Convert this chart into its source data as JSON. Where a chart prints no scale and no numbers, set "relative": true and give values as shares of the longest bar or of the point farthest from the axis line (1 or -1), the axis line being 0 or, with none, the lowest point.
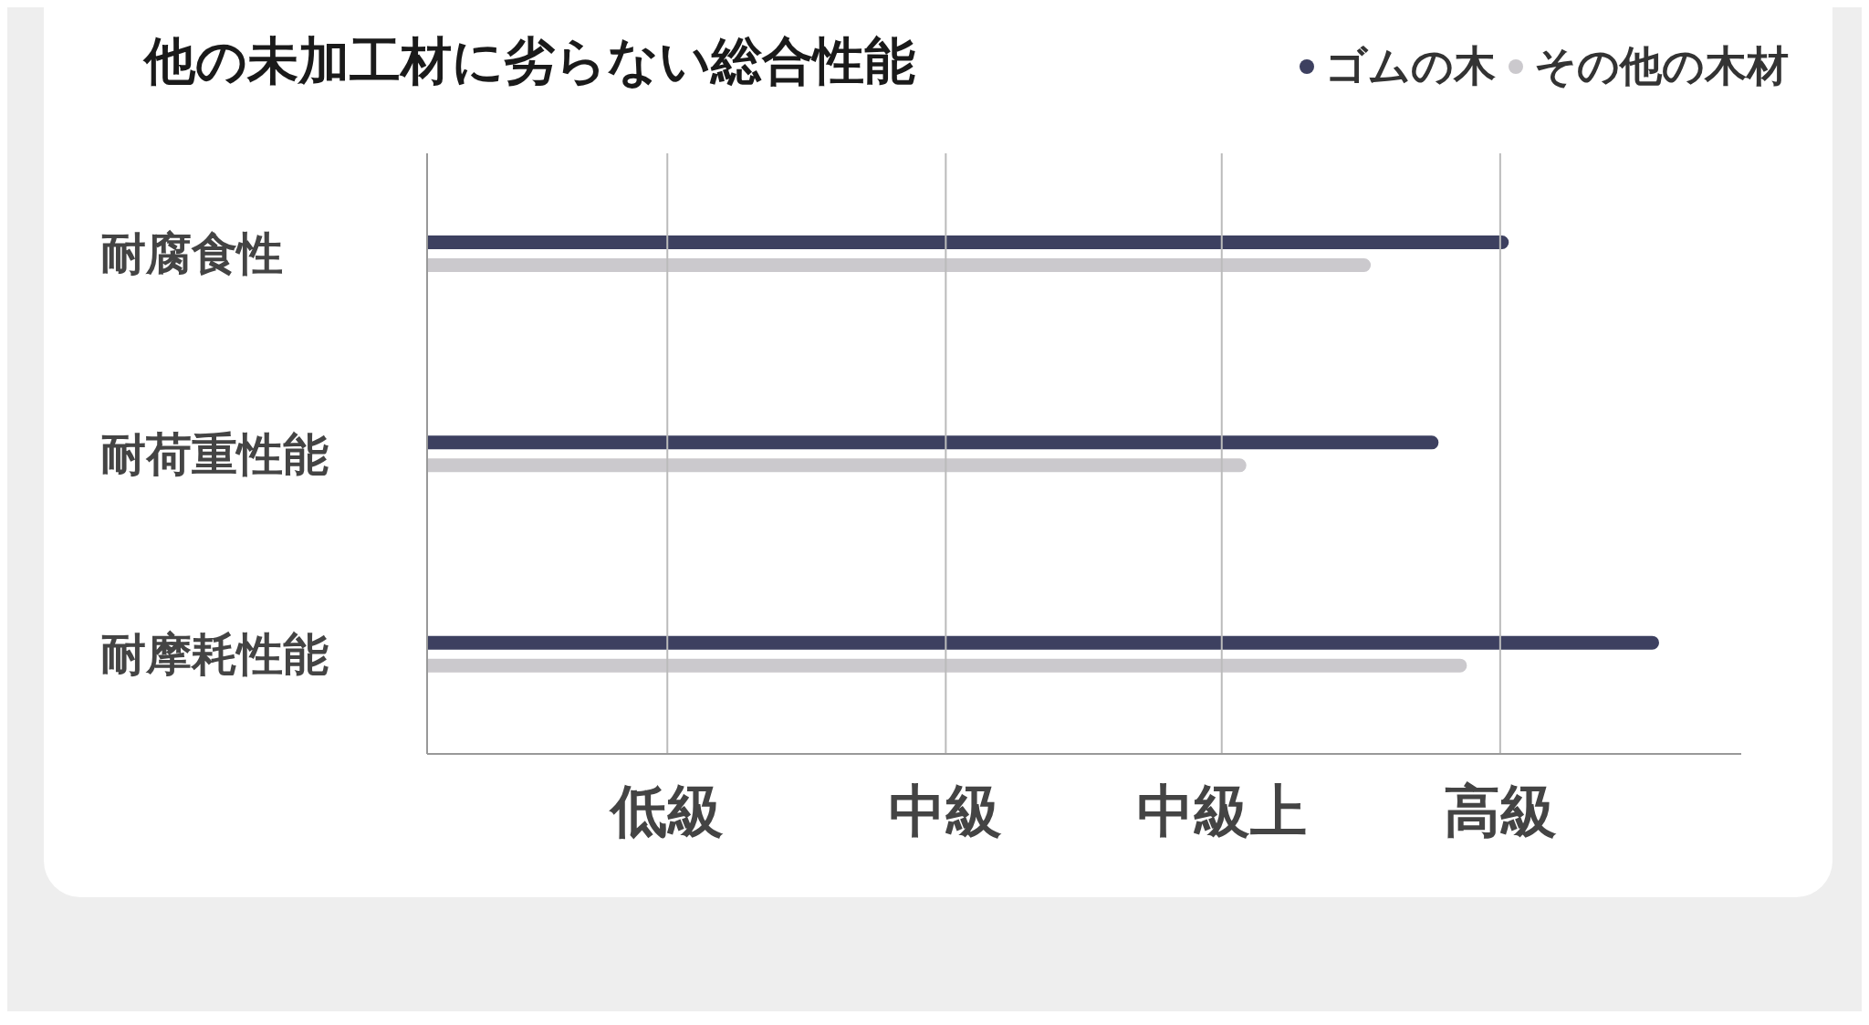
{
  "chart_data": {
    "type": "bar",
    "orientation": "horizontal",
    "relative": true,
    "title": "他の未加工材に劣らない総合性能",
    "categories": [
      "耐腐食性",
      "耐荷重性能",
      "耐摩耗性能"
    ],
    "series": [
      {
        "name": "ゴムの木",
        "color": "#3d4060",
        "values": [
          0.878,
          0.821,
          1
        ]
      },
      {
        "name": "その他の木材",
        "color": "#cbc9cd",
        "values": [
          0.766,
          0.665,
          0.844
        ]
      }
    ],
    "ref_lines": [
      {
        "axis": "x",
        "value": 0.195,
        "label": "低級",
        "color": "#bbbbbb"
      },
      {
        "axis": "x",
        "value": 0.421,
        "label": "中級",
        "color": "#bbbbbb"
      },
      {
        "axis": "x",
        "value": 0.645,
        "label": "中級上",
        "color": "#bbbbbb"
      },
      {
        "axis": "x",
        "value": 0.871,
        "label": "高級",
        "color": "#bbbbbb"
      }
    ],
    "legend": "top right"
  }
}
